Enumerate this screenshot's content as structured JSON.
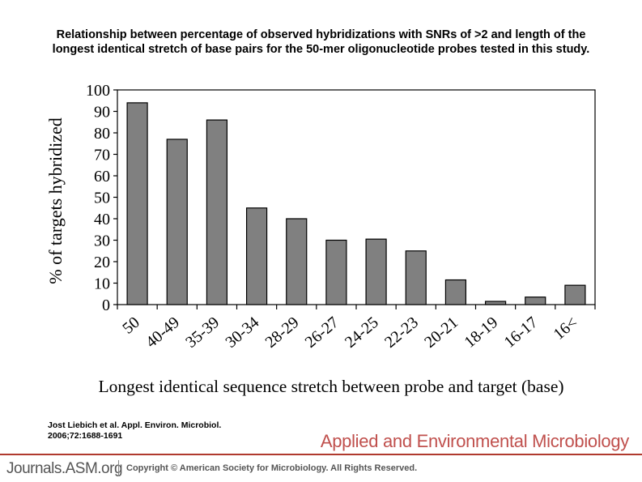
{
  "title_lines": [
    "Relationship between percentage of observed hybridizations with SNRs of >2 and length of the",
    "longest identical stretch of base pairs for the 50-mer oligonucleotide probes tested in this study."
  ],
  "chart_data": {
    "type": "bar",
    "categories": [
      "50",
      "40-49",
      "35-39",
      "30-34",
      "28-29",
      "26-27",
      "24-25",
      "22-23",
      "20-21",
      "18-19",
      "16-17",
      "16<"
    ],
    "values": [
      94,
      77,
      86,
      45,
      40,
      30,
      30.5,
      25,
      11.5,
      1.5,
      3.5,
      9
    ],
    "xlabel": "Longest identical sequence stretch between probe and target (base)",
    "ylabel": "% of targets hybridized",
    "ylim": [
      0,
      100
    ],
    "yticks": [
      "0",
      "10",
      "20",
      "30",
      "40",
      "50",
      "60",
      "70",
      "80",
      "90",
      "100"
    ],
    "grid": false,
    "bar_color": "#808080"
  },
  "citation_lines": [
    "Jost Liebich et al. Appl. Environ. Microbiol.",
    "2006;72:1688-1691"
  ],
  "journal_name": "Applied and Environmental Microbiology",
  "footer": {
    "site": "Journals.ASM.org",
    "copyright": "Copyright © American Society for Microbiology. All Rights Reserved."
  }
}
